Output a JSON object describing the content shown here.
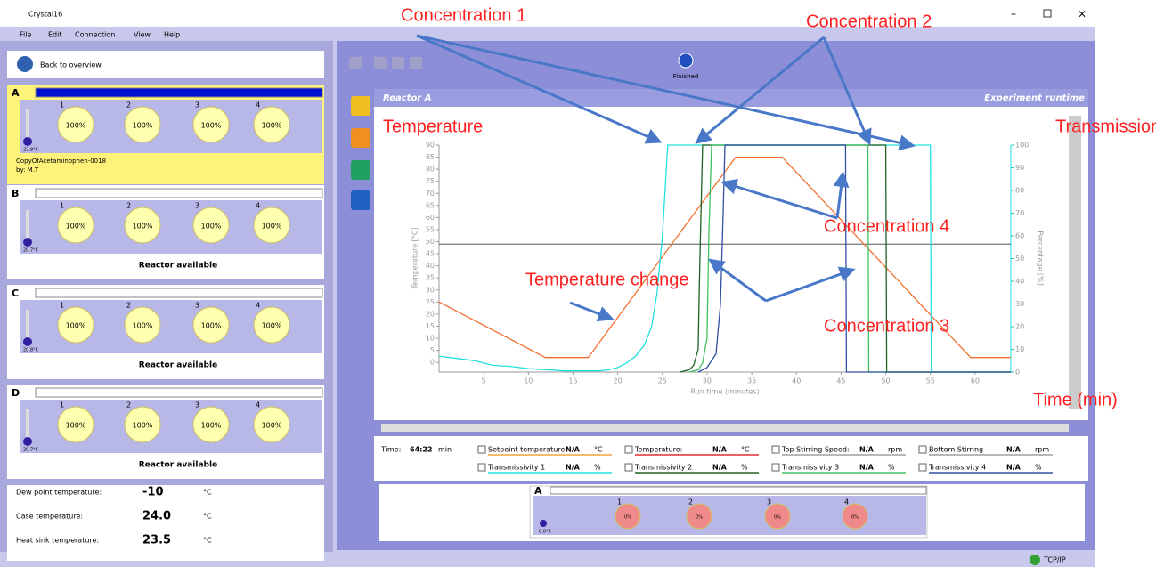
{
  "window": {
    "title": "Crystal16"
  },
  "menu": [
    "File",
    "Edit",
    "Connection",
    "View",
    "Help"
  ],
  "sidebar": {
    "back": "Back to overview",
    "reactors": [
      {
        "label": "A",
        "temperature": "22.8°C",
        "vials": [
          {
            "number": "1",
            "value": "100%"
          },
          {
            "number": "2",
            "value": "100%"
          },
          {
            "number": "3",
            "value": "100%"
          },
          {
            "number": "4",
            "value": "100%"
          }
        ],
        "experiment": "CopyOfAcetaminophen-0018",
        "author": "by: M.T"
      },
      {
        "label": "B",
        "temperature": "20.7°C",
        "vials": [
          {
            "number": "1",
            "value": "100%"
          },
          {
            "number": "2",
            "value": "100%"
          },
          {
            "number": "3",
            "value": "100%"
          },
          {
            "number": "4",
            "value": "100%"
          }
        ],
        "status": "Reactor available"
      },
      {
        "label": "C",
        "temperature": "20.8°C",
        "vials": [
          {
            "number": "1",
            "value": "100%"
          },
          {
            "number": "2",
            "value": "100%"
          },
          {
            "number": "3",
            "value": "100%"
          },
          {
            "number": "4",
            "value": "100%"
          }
        ],
        "status": "Reactor available"
      },
      {
        "label": "D",
        "temperature": "20.7°C",
        "vials": [
          {
            "number": "1",
            "value": "100%"
          },
          {
            "number": "2",
            "value": "100%"
          },
          {
            "number": "3",
            "value": "100%"
          },
          {
            "number": "4",
            "value": "100%"
          }
        ],
        "status": "Reactor available"
      }
    ],
    "readings": [
      {
        "label": "Dew point temperature:",
        "value": "-10",
        "unit": "°C"
      },
      {
        "label": "Case temperature:",
        "value": "24.0",
        "unit": "°C"
      },
      {
        "label": "Heat sink temperature:",
        "value": "23.5",
        "unit": "°C"
      }
    ]
  },
  "toolbar": {
    "status": "Finished"
  },
  "panel": {
    "title": "Reactor A",
    "subtitle": "Experiment runtime"
  },
  "chart_data": {
    "type": "line",
    "xlabel": "Run time (minutes)",
    "ylabel": "Temperature [°C]",
    "y2label": "Percentage [%]",
    "xlim": [
      0,
      64
    ],
    "ylim": [
      -4,
      90
    ],
    "y2lim": [
      0,
      100
    ],
    "xticks": [
      5,
      10,
      15,
      20,
      25,
      30,
      35,
      40,
      45,
      50,
      55,
      60
    ],
    "yticks": [
      0,
      5,
      10,
      15,
      20,
      25,
      30,
      35,
      40,
      45,
      50,
      55,
      60,
      65,
      70,
      75,
      80,
      85,
      90
    ],
    "y2ticks": [
      0,
      10,
      20,
      30,
      40,
      50,
      60,
      70,
      80,
      90,
      100
    ],
    "cursor_y": 49,
    "series": [
      {
        "color": "#f07030",
        "x": [
          0,
          11.9,
          16.7,
          33.2,
          38.4,
          59.5,
          64
        ],
        "values": [
          25,
          2,
          2,
          85,
          85,
          2,
          2
        ]
      },
      {
        "color": "#20e0e0",
        "axis": "y2",
        "x": [
          0,
          2,
          4,
          6,
          8,
          10,
          12,
          14,
          16,
          18,
          19,
          20,
          21,
          22,
          23,
          23.8,
          24.4,
          25,
          25.6,
          55,
          55.1,
          64
        ],
        "values": [
          7,
          6,
          5,
          3,
          2.5,
          1.5,
          1,
          0.5,
          0.5,
          0.5,
          1,
          2,
          4,
          7,
          12,
          20,
          35,
          60,
          100,
          100,
          0,
          0
        ]
      },
      {
        "color": "#206020",
        "axis": "y2",
        "x": [
          27,
          28,
          28.5,
          29,
          29.2,
          29.5,
          50,
          50.1,
          64
        ],
        "values": [
          0,
          1,
          3,
          10,
          50,
          100,
          100,
          0,
          0
        ]
      },
      {
        "color": "#40c060",
        "axis": "y2",
        "x": [
          28,
          29,
          29.5,
          30,
          30.2,
          30.5,
          48,
          48.1,
          64
        ],
        "values": [
          0,
          1,
          4,
          15,
          60,
          100,
          100,
          0,
          0
        ]
      },
      {
        "color": "#3050a0",
        "axis": "y2",
        "x": [
          29,
          30,
          31,
          31.5,
          31.8,
          32,
          45.5,
          45.6,
          64
        ],
        "values": [
          0,
          2,
          8,
          30,
          70,
          100,
          100,
          0,
          0
        ]
      }
    ]
  },
  "legend": {
    "time_label": "Time:",
    "time": "64:22",
    "time_unit": "min",
    "items": [
      {
        "name": "Setpoint temperature:",
        "value": "N/A",
        "unit": "°C",
        "color": "#f0a040"
      },
      {
        "name": "Temperature:",
        "value": "N/A",
        "unit": "°C",
        "color": "#e03030"
      },
      {
        "name": "Top Stirring Speed:",
        "value": "N/A",
        "unit": "rpm",
        "color": "#a0a0a0"
      },
      {
        "name": "Bottom Stirring",
        "value": "N/A",
        "unit": "rpm",
        "color": "#a0a0a0"
      },
      {
        "name": "Transmissivity 1",
        "value": "N/A",
        "unit": "%",
        "color": "#20e0e0"
      },
      {
        "name": "Transmissivity 2",
        "value": "N/A",
        "unit": "%",
        "color": "#206020"
      },
      {
        "name": "Transmissivity 3",
        "value": "N/A",
        "unit": "%",
        "color": "#40c060"
      },
      {
        "name": "Transmissivity 4",
        "value": "N/A",
        "unit": "%",
        "color": "#3050a0"
      }
    ]
  },
  "bottom_reactor": {
    "label": "A",
    "temperature": "8.0°C",
    "vials": [
      {
        "number": "1",
        "value": "0%"
      },
      {
        "number": "2",
        "value": "0%"
      },
      {
        "number": "3",
        "value": "0%"
      },
      {
        "number": "4",
        "value": "0%"
      }
    ]
  },
  "statusbar": "TCP/IP",
  "annotations": [
    "Concentration 1",
    "Concentration 2",
    "Temperature",
    "Transmission",
    "Concentration 4",
    "Temperature change",
    "Concentration 3",
    "Time (min)"
  ]
}
